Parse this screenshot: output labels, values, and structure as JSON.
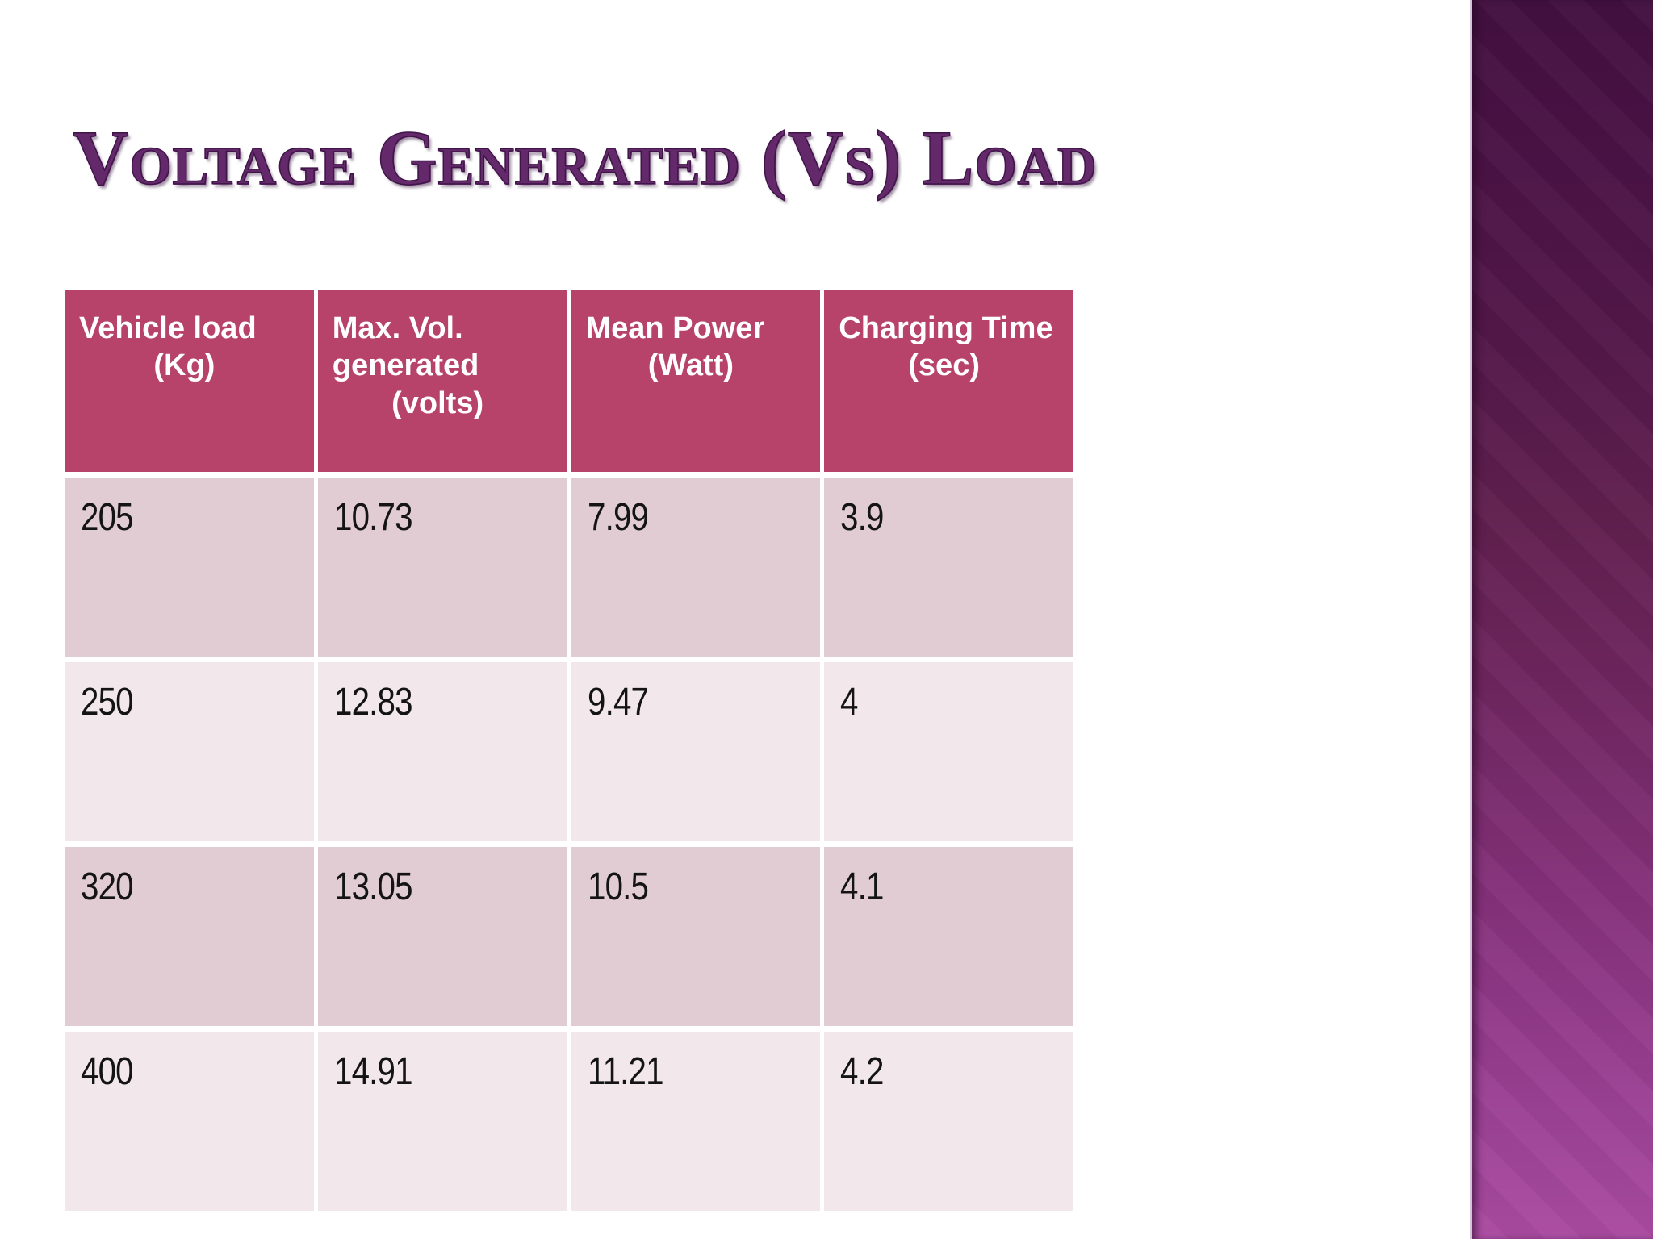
{
  "title": "Voltage Generated (Vs) Load",
  "table": {
    "columns": [
      {
        "name": "Vehicle load",
        "unit": "(Kg)"
      },
      {
        "name": "Max. Vol. generated",
        "unit": "(volts)"
      },
      {
        "name": "Mean Power",
        "unit": "(Watt)"
      },
      {
        "name": "Charging Time",
        "unit": "(sec)"
      }
    ],
    "rows": [
      [
        "205",
        "10.73",
        "7.99",
        "3.9"
      ],
      [
        "250",
        "12.83",
        "9.47",
        "4"
      ],
      [
        "320",
        "13.05",
        "10.5",
        "4.1"
      ],
      [
        "400",
        "14.91",
        "11.21",
        "4.2"
      ]
    ]
  },
  "colors": {
    "header_background": "#b7426a",
    "row_odd_background": "#e2ccd4",
    "row_even_background": "#f2e7ea",
    "title_purple": "#63296b",
    "accent_bar_top": "#431040",
    "accent_bar_bottom": "#aa4ba1"
  }
}
